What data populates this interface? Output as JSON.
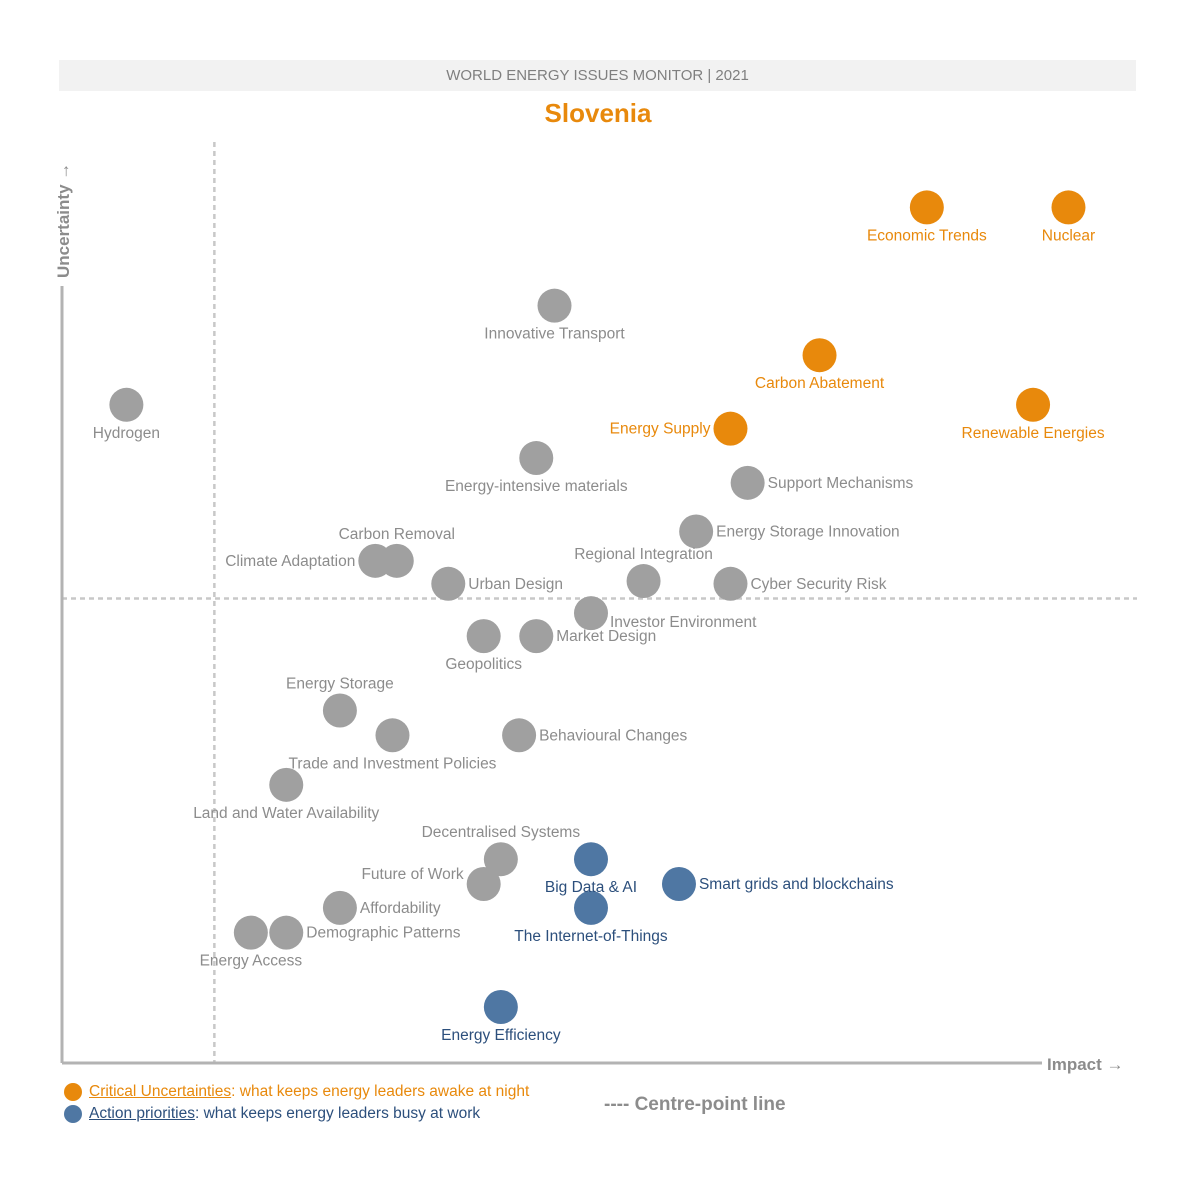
{
  "header": {
    "banner": "WORLD ENERGY ISSUES MONITOR | 2021",
    "country": "Slovenia"
  },
  "colors": {
    "critical": "#e8890c",
    "action": "#4f77a3",
    "action_text": "#2c4f7c",
    "other": "#a0a0a0",
    "other_text": "#8c8c8c",
    "axis": "#b3b3b3",
    "centre_line": "#c8c8c8"
  },
  "legend": {
    "critical": {
      "term": "Critical Uncertainties",
      "desc": ": what keeps energy leaders awake at night"
    },
    "action": {
      "term": "Action priorities",
      "desc": ": what keeps energy leaders busy at work"
    },
    "centre_line": "---- Centre-point line"
  },
  "chart_data": {
    "type": "scatter",
    "title": "Slovenia",
    "xlabel": "Impact",
    "ylabel": "Uncertainty",
    "xlim": [
      0,
      100
    ],
    "ylim": [
      0,
      100
    ],
    "centre_point": {
      "x": 14.2,
      "y": 50.6
    },
    "points": [
      {
        "name": "Economic Trends",
        "x": 80.6,
        "y": 93.2,
        "category": "critical",
        "label_pos": "below"
      },
      {
        "name": "Nuclear",
        "x": 93.8,
        "y": 93.2,
        "category": "critical",
        "label_pos": "below"
      },
      {
        "name": "Innovative Transport",
        "x": 45.9,
        "y": 82.5,
        "category": "other",
        "label_pos": "below"
      },
      {
        "name": "Carbon Abatement",
        "x": 70.6,
        "y": 77.1,
        "category": "critical",
        "label_pos": "below"
      },
      {
        "name": "Hydrogen",
        "x": 6.0,
        "y": 71.7,
        "category": "other",
        "label_pos": "below"
      },
      {
        "name": "Renewable Energies",
        "x": 90.5,
        "y": 71.7,
        "category": "critical",
        "label_pos": "below"
      },
      {
        "name": "Energy Supply",
        "x": 62.3,
        "y": 69.1,
        "category": "critical",
        "label_pos": "left"
      },
      {
        "name": "Energy-intensive materials",
        "x": 44.2,
        "y": 65.9,
        "category": "other",
        "label_pos": "below"
      },
      {
        "name": "Support Mechanisms",
        "x": 63.9,
        "y": 63.2,
        "category": "other",
        "label_pos": "right"
      },
      {
        "name": "Energy Storage Innovation",
        "x": 59.1,
        "y": 57.9,
        "category": "other",
        "label_pos": "right"
      },
      {
        "name": "Carbon Removal",
        "x": 31.2,
        "y": 54.7,
        "category": "other",
        "label_pos": "above"
      },
      {
        "name": "Climate Adaptation",
        "x": 29.2,
        "y": 54.7,
        "category": "other",
        "label_pos": "left"
      },
      {
        "name": "Regional Integration",
        "x": 54.2,
        "y": 52.5,
        "category": "other",
        "label_pos": "above"
      },
      {
        "name": "Urban Design",
        "x": 36.0,
        "y": 52.2,
        "category": "other",
        "label_pos": "right"
      },
      {
        "name": "Cyber Security Risk",
        "x": 62.3,
        "y": 52.2,
        "category": "other",
        "label_pos": "right"
      },
      {
        "name": "Investor Environment",
        "x": 49.3,
        "y": 49.0,
        "category": "other",
        "label_pos": "below-right"
      },
      {
        "name": "Geopolitics",
        "x": 39.3,
        "y": 46.5,
        "category": "other",
        "label_pos": "below"
      },
      {
        "name": "Market Design",
        "x": 44.2,
        "y": 46.5,
        "category": "other",
        "label_pos": "right"
      },
      {
        "name": "Energy Storage",
        "x": 25.9,
        "y": 38.4,
        "category": "other",
        "label_pos": "above"
      },
      {
        "name": "Trade and Investment Policies",
        "x": 30.8,
        "y": 35.7,
        "category": "other",
        "label_pos": "below"
      },
      {
        "name": "Behavioural Changes",
        "x": 42.6,
        "y": 35.7,
        "category": "other",
        "label_pos": "right"
      },
      {
        "name": "Land and Water Availability",
        "x": 20.9,
        "y": 30.3,
        "category": "other",
        "label_pos": "below"
      },
      {
        "name": "Decentralised Systems",
        "x": 40.9,
        "y": 22.2,
        "category": "other",
        "label_pos": "above"
      },
      {
        "name": "Big Data & AI",
        "x": 49.3,
        "y": 22.2,
        "category": "action",
        "label_pos": "below"
      },
      {
        "name": "Future of Work",
        "x": 39.3,
        "y": 19.5,
        "category": "other",
        "label_pos": "left-above"
      },
      {
        "name": "Smart grids and blockchains",
        "x": 57.5,
        "y": 19.5,
        "category": "action",
        "label_pos": "right"
      },
      {
        "name": "Affordability",
        "x": 25.9,
        "y": 16.9,
        "category": "other",
        "label_pos": "right"
      },
      {
        "name": "The Internet-of-Things",
        "x": 49.3,
        "y": 16.9,
        "category": "action",
        "label_pos": "below"
      },
      {
        "name": "Energy Access",
        "x": 17.6,
        "y": 14.2,
        "category": "other",
        "label_pos": "below"
      },
      {
        "name": "Demographic Patterns",
        "x": 20.9,
        "y": 14.2,
        "category": "other",
        "label_pos": "right"
      },
      {
        "name": "Energy Efficiency",
        "x": 40.9,
        "y": 6.1,
        "category": "action",
        "label_pos": "below"
      }
    ]
  }
}
